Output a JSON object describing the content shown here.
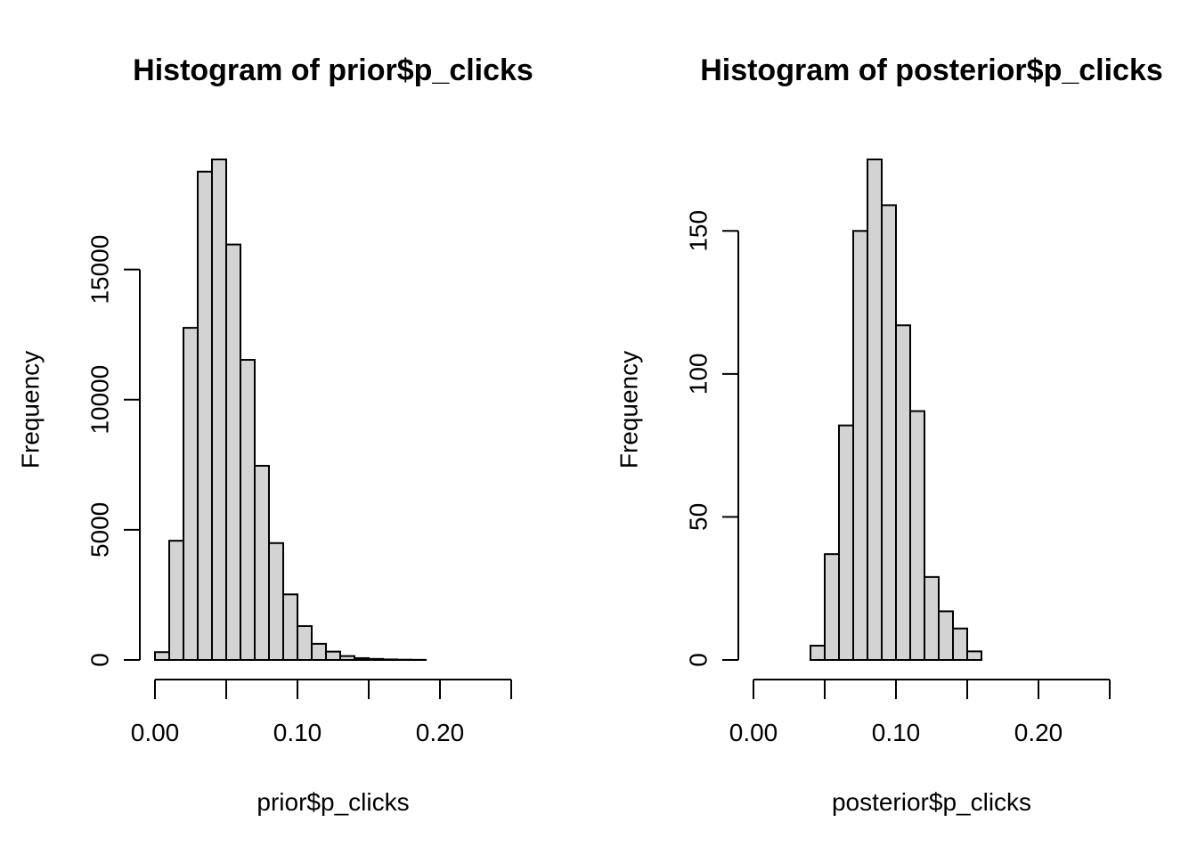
{
  "chart_data": [
    {
      "type": "bar",
      "title": "Histogram of prior$p_clicks",
      "xlabel": "prior$p_clicks",
      "ylabel": "Frequency",
      "bin_width": 0.01,
      "bin_start": 0.0,
      "values": [
        300,
        4580,
        12760,
        18760,
        19230,
        15960,
        11530,
        7460,
        4490,
        2520,
        1300,
        620,
        320,
        150,
        70,
        40,
        20,
        10,
        5
      ],
      "xlim": [
        0.0,
        0.25
      ],
      "ylim": [
        0,
        19230
      ],
      "x_ticks": [
        0.0,
        0.05,
        0.1,
        0.15,
        0.2,
        0.25
      ],
      "x_tick_labels": [
        "0.00",
        "0.10",
        "0.20"
      ],
      "x_tick_label_values": [
        0.0,
        0.1,
        0.2
      ],
      "y_ticks": [
        0,
        5000,
        10000,
        15000
      ],
      "y_tick_labels": [
        "0",
        "5000",
        "10000",
        "15000"
      ],
      "grid": false,
      "legend": "none"
    },
    {
      "type": "bar",
      "title": "Histogram of posterior$p_clicks",
      "xlabel": "posterior$p_clicks",
      "ylabel": "Frequency",
      "bin_width": 0.01,
      "bin_start": 0.04,
      "values": [
        5,
        37,
        82,
        150,
        175,
        159,
        117,
        87,
        29,
        17,
        11,
        3
      ],
      "xlim": [
        0.0,
        0.25
      ],
      "ylim": [
        0,
        175
      ],
      "x_ticks": [
        0.0,
        0.05,
        0.1,
        0.15,
        0.2,
        0.25
      ],
      "x_tick_labels": [
        "0.00",
        "0.10",
        "0.20"
      ],
      "x_tick_label_values": [
        0.0,
        0.1,
        0.2
      ],
      "y_ticks": [
        0,
        50,
        100,
        150
      ],
      "y_tick_labels": [
        "0",
        "50",
        "100",
        "150"
      ],
      "grid": false,
      "legend": "none"
    }
  ]
}
